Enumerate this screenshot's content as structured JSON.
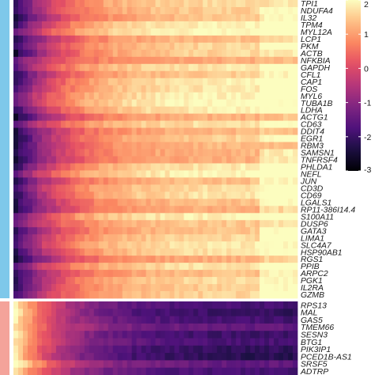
{
  "chart_data": {
    "type": "heatmap",
    "colormap": "magma",
    "color_scale": {
      "min": -3,
      "max": 2,
      "ticks": [
        2,
        1,
        0,
        -1,
        -2,
        -3
      ]
    },
    "groups": [
      {
        "color": "#7ec8ea",
        "genes": [
          "TPI1",
          "NDUFA4",
          "IL32",
          "TPM4",
          "MYL12A",
          "LCP1",
          "PKM",
          "ACTB",
          "NFKBIA",
          "GAPDH",
          "CFL1",
          "CAP1",
          "FOS",
          "MYL6",
          "TUBA1B",
          "LDHA",
          "ACTG1",
          "CD63",
          "DDIT4",
          "EGR1",
          "RBM3",
          "SAMSN1",
          "TNFRSF4",
          "PHLDA1",
          "NEFL",
          "JUN",
          "CD3D",
          "CD69",
          "LGALS1",
          "RP11-386I14.4",
          "S100A11",
          "DUSP6",
          "GATA3",
          "LIMA1",
          "SLC4A7",
          "HSP90AB1",
          "RGS1",
          "PPIB",
          "ARPC2",
          "PGK1",
          "IL2RA",
          "GZMB"
        ]
      },
      {
        "color": "#f4a39a",
        "genes": [
          "RPS13",
          "MAL",
          "GAS5",
          "TMEM66",
          "SESN3",
          "BTG1",
          "PIK3IP1",
          "PCED1B-AS1",
          "SRSF5",
          "ADTRP"
        ]
      }
    ]
  }
}
